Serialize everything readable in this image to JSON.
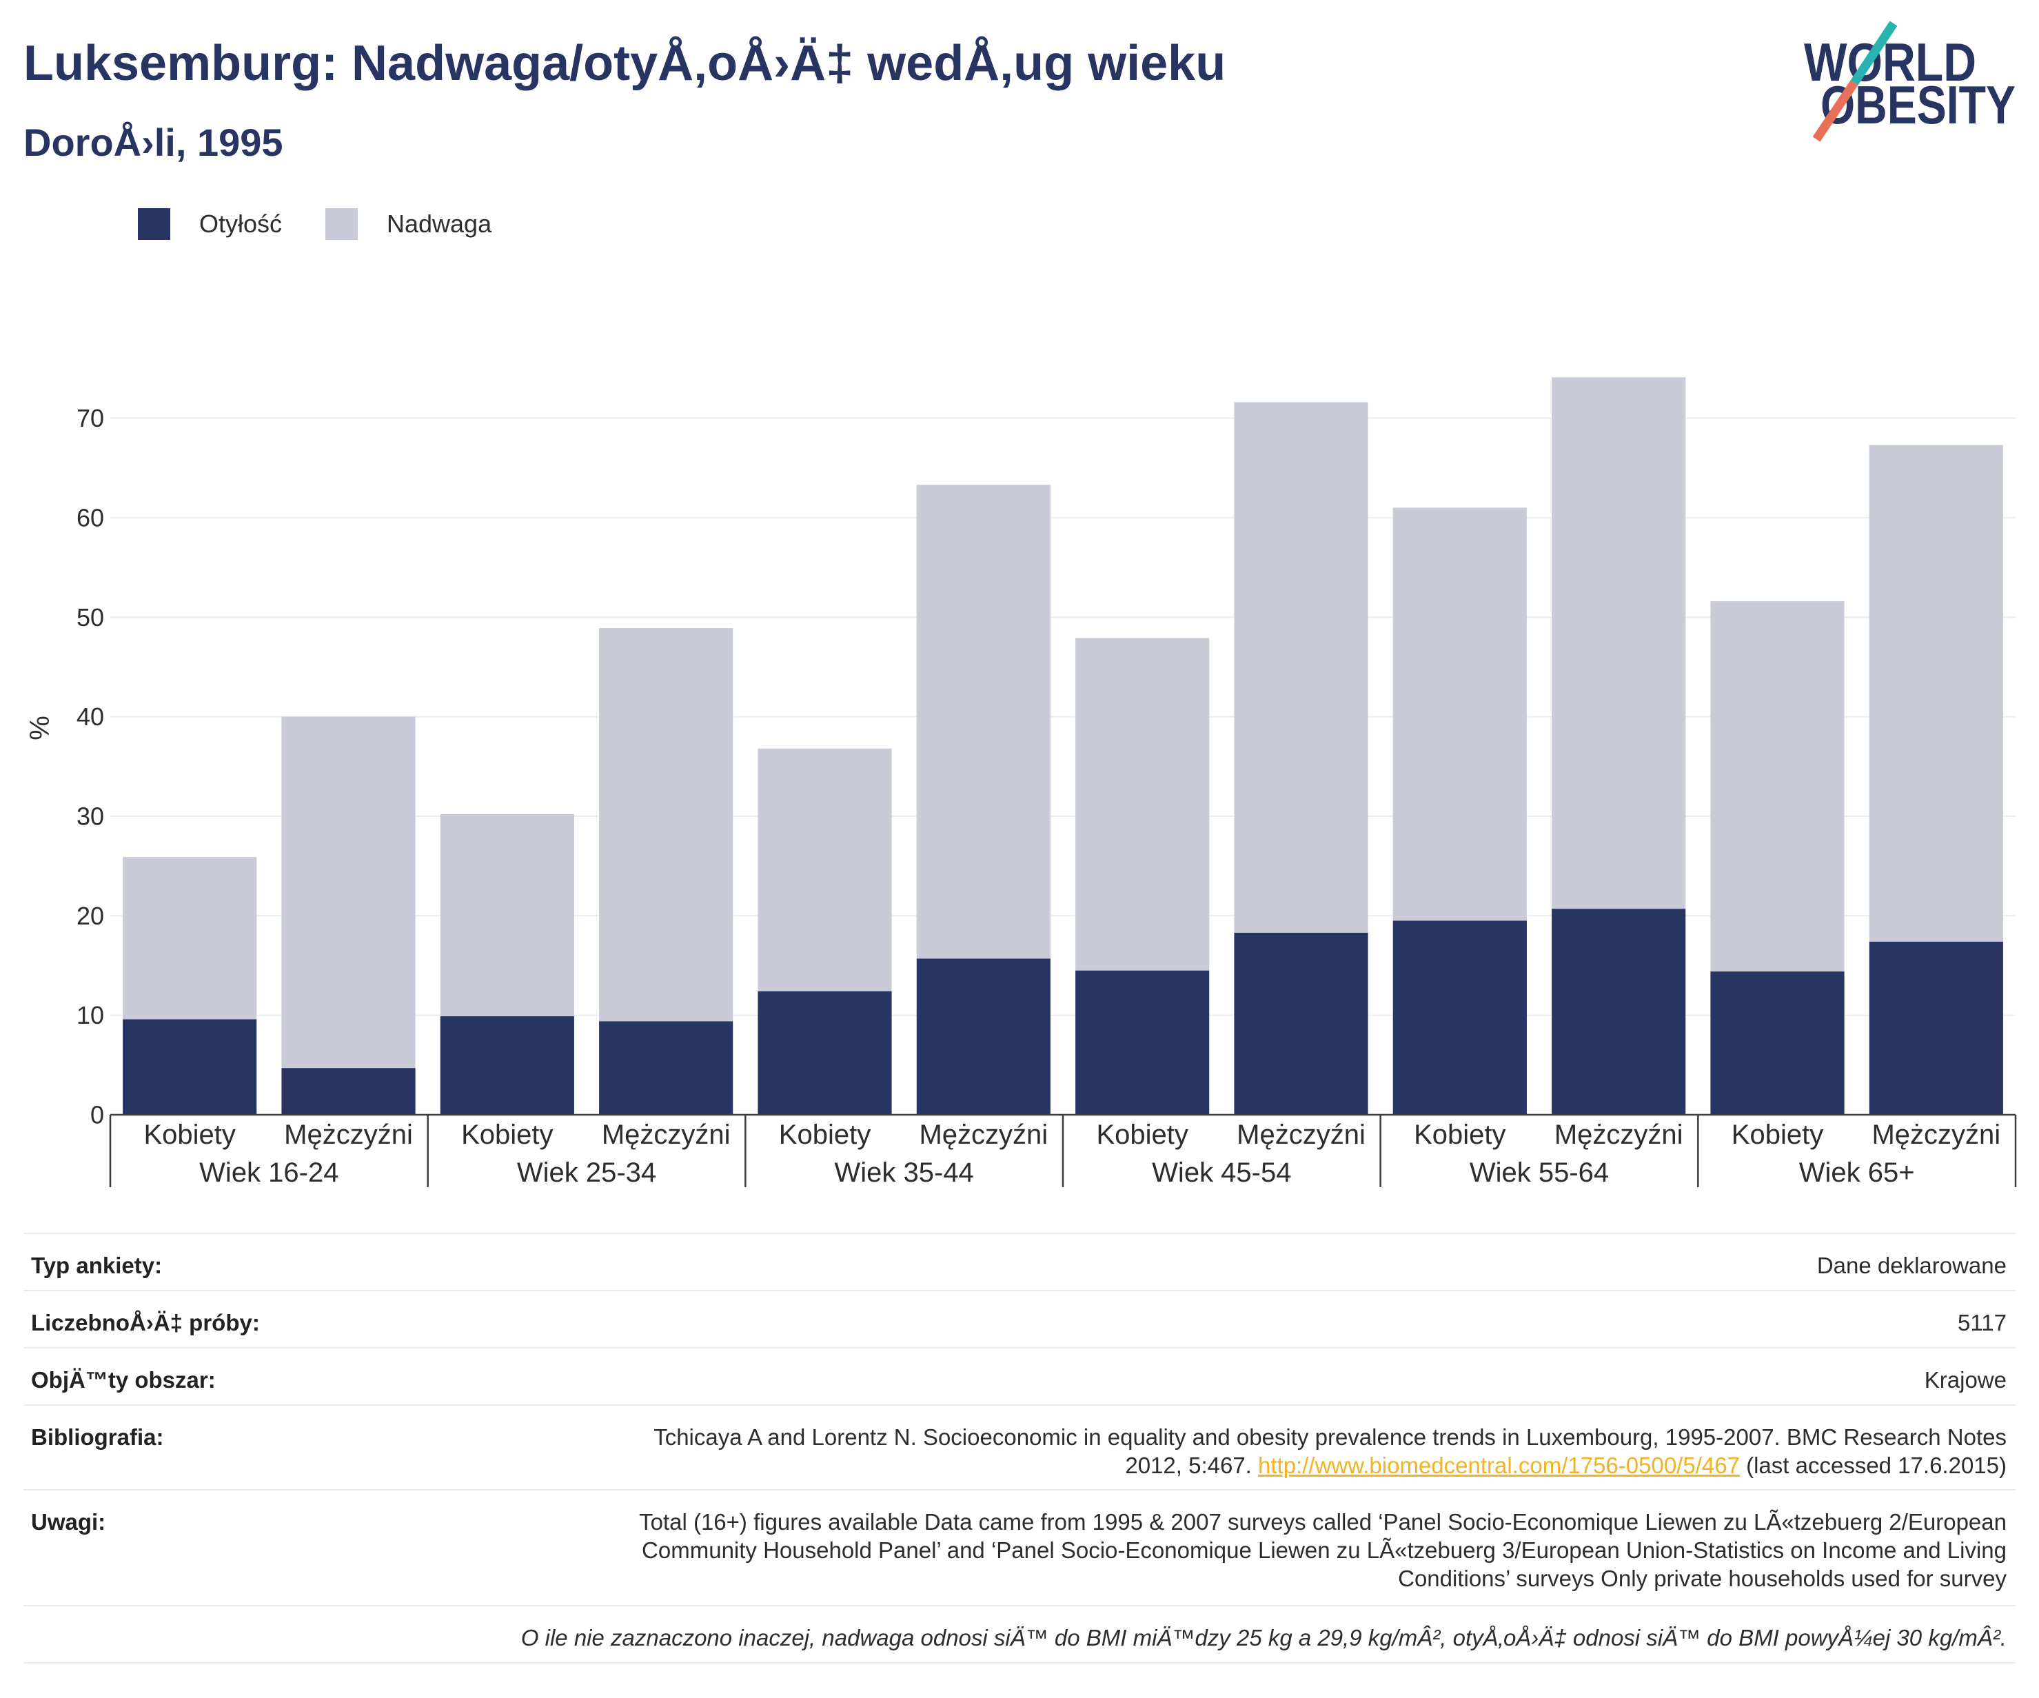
{
  "theme": {
    "brand": "#283562",
    "link": "#efb324",
    "logo_teal": "#29b3ae",
    "logo_coral": "#e8705a"
  },
  "logo": {
    "line1": "WORLD",
    "line2": "OBESITY"
  },
  "chart_data": {
    "type": "bar",
    "stacked": true,
    "title": "Luksemburg: Nadwaga/otyÅ‚oÅ›Ä‡ wedÅ‚ug wieku",
    "subtitle": "DoroÅ›li, 1995",
    "xlabel": "",
    "ylabel": "%",
    "ylim": [
      0,
      78
    ],
    "yticks": [
      0,
      10,
      20,
      30,
      40,
      50,
      60,
      70
    ],
    "grid": true,
    "legend_position": "top-left",
    "groups": [
      {
        "label": "Wiek 16-24",
        "categories": [
          "Kobiety",
          "Mężczyźni"
        ]
      },
      {
        "label": "Wiek 25-34",
        "categories": [
          "Kobiety",
          "Mężczyźni"
        ]
      },
      {
        "label": "Wiek 35-44",
        "categories": [
          "Kobiety",
          "Mężczyźni"
        ]
      },
      {
        "label": "Wiek 45-54",
        "categories": [
          "Kobiety",
          "Mężczyźni"
        ]
      },
      {
        "label": "Wiek 55-64",
        "categories": [
          "Kobiety",
          "Mężczyźni"
        ]
      },
      {
        "label": "Wiek 65+",
        "categories": [
          "Kobiety",
          "Mężczyźni"
        ]
      }
    ],
    "series": [
      {
        "name": "Otyłość",
        "color": "#283562",
        "values": [
          9.6,
          4.7,
          9.9,
          9.4,
          12.4,
          15.7,
          14.5,
          18.3,
          19.5,
          20.7,
          14.4,
          17.4
        ]
      },
      {
        "name": "Nadwaga",
        "color": "#c9cbd8",
        "values": [
          16.3,
          35.3,
          20.3,
          39.5,
          24.4,
          47.6,
          33.4,
          53.3,
          41.5,
          53.4,
          37.2,
          49.9
        ]
      }
    ]
  },
  "survey_info": {
    "rows": [
      {
        "label": "Typ ankiety:",
        "value": "Dane deklarowane"
      },
      {
        "label": "LiczebnoÅ›Ä‡ próby:",
        "value": "5117"
      },
      {
        "label": "ObjÄ™ty obszar:",
        "value": "Krajowe"
      }
    ],
    "bibliography": {
      "label": "Bibliografia:",
      "line1": "Tchicaya A and Lorentz N. Socioeconomic in equality and obesity prevalence trends in Luxembourg, 1995-2007. BMC Research Notes",
      "line2_prefix": "2012, 5:467.",
      "link": "http://www.biomedcentral.com/1756-0500/5/467",
      "line2_suffix": "(last accessed 17.6.2015)"
    },
    "notes": {
      "label": "Uwagi:",
      "lines": [
        "Total (16+) figures available Data came from 1995 & 2007 surveys called ‘Panel Socio-Economique Liewen zu LÃ«tzebuerg 2/European",
        "Community Household Panel’ and ‘Panel Socio-Economique Liewen zu LÃ«tzebuerg 3/European Union-Statistics on Income and Living",
        "Conditions’ surveys Only private households used for survey"
      ]
    },
    "footnote": "O ile nie zaznaczono inaczej, nadwaga odnosi siÄ™ do BMI miÄ™dzy 25 kg a 29,9 kg/mÂ², otyÅ‚oÅ›Ä‡ odnosi siÄ™ do BMI powyÅ¼ej 30 kg/mÂ²."
  }
}
